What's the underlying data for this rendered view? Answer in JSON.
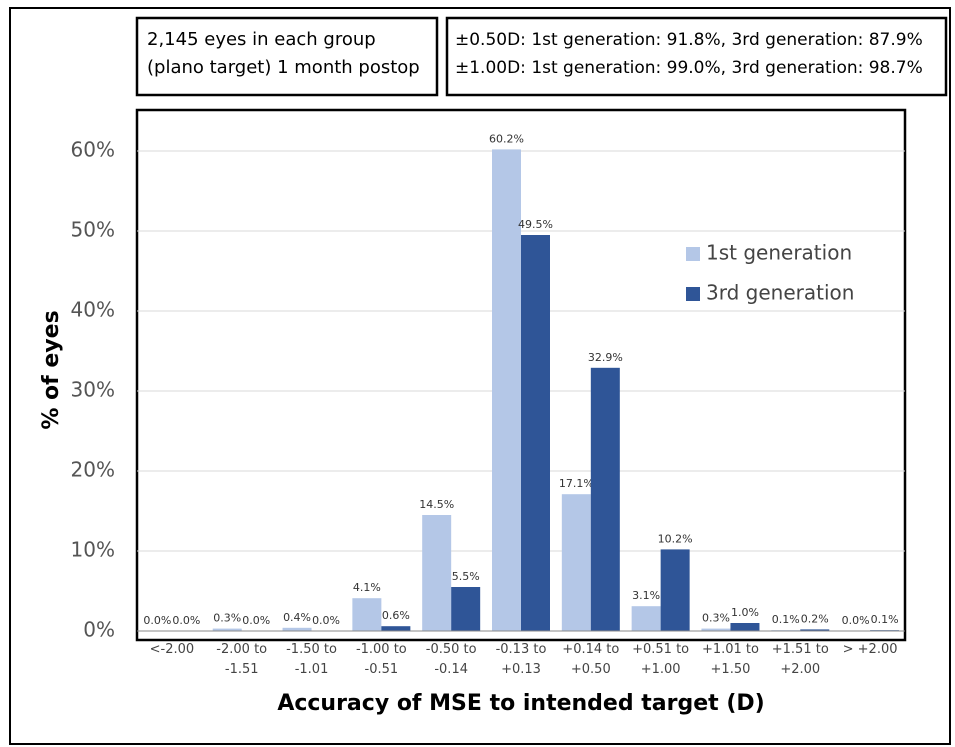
{
  "chart_data": {
    "type": "bar",
    "annotations": [
      "2,145 eyes in each group",
      "(plano target) 1 month postop",
      "±0.50D: 1st generation: 91.8%, 3rd generation: 87.9%",
      "±1.00D: 1st generation: 99.0%, 3rd generation: 98.7%"
    ],
    "x_label": "Accuracy of MSE to intended target (D)",
    "y_label": "% of eyes",
    "categories": [
      "<-2.00",
      "-2.00 to -1.51",
      "-1.50 to -1.01",
      "-1.00 to -0.51",
      "-0.50 to -0.14",
      "-0.13 to +0.13",
      "+0.14 to +0.50",
      "+0.51 to +1.00",
      "+1.01 to +1.50",
      "+1.51 to +2.00",
      "> +2.00"
    ],
    "series": [
      {
        "name": "1st generation",
        "color": "#b4c7e7",
        "values": [
          0.0,
          0.3,
          0.4,
          4.1,
          14.5,
          60.2,
          17.1,
          3.1,
          0.3,
          0.1,
          0.0
        ],
        "value_labels": [
          "0.0%",
          "0.3%",
          "0.4%",
          "4.1%",
          "14.5%",
          "60.2%",
          "17.1%",
          "3.1%",
          "0.3%",
          "0.1%",
          "0.0%"
        ]
      },
      {
        "name": "3rd generation",
        "color": "#2f5597",
        "values": [
          0.0,
          0.0,
          0.0,
          0.6,
          5.5,
          49.5,
          32.9,
          10.2,
          1.0,
          0.2,
          0.1
        ],
        "value_labels": [
          "0.0%",
          "0.0%",
          "0.0%",
          "0.6%",
          "5.5%",
          "49.5%",
          "32.9%",
          "10.2%",
          "1.0%",
          "0.2%",
          "0.1%"
        ]
      }
    ],
    "ylim": [
      0,
      65
    ],
    "yticks": [
      {
        "value": 0,
        "label": "0%"
      },
      {
        "value": 10,
        "label": "10%"
      },
      {
        "value": 20,
        "label": "20%"
      },
      {
        "value": 30,
        "label": "30%"
      },
      {
        "value": 40,
        "label": "40%"
      },
      {
        "value": 50,
        "label": "50%"
      },
      {
        "value": 60,
        "label": "60%"
      }
    ],
    "grid": true,
    "legend": "right"
  }
}
